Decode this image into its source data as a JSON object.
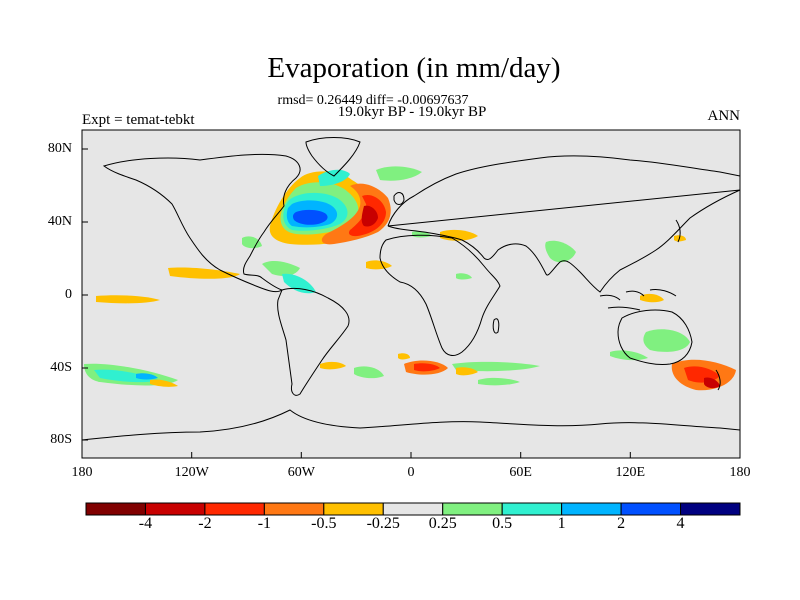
{
  "title": "Evaporation (in mm/day)",
  "stats": "rmsd= 0.26449 diff= -0.00697637",
  "period": "19.0kyr BP - 19.0kyr BP",
  "experiment": "Expt = temat-tebkt",
  "season": "ANN",
  "x_ticks": [
    "180",
    "120W",
    "60W",
    "0",
    "60E",
    "120E",
    "180"
  ],
  "y_ticks": [
    "80N",
    "40N",
    "0",
    "40S",
    "80S"
  ],
  "colorbar": {
    "labels": [
      "-4",
      "-2",
      "-1",
      "-0.5",
      "-0.25",
      "0.25",
      "0.5",
      "1",
      "2",
      "4"
    ],
    "colors": [
      "#800000",
      "#c80000",
      "#ff2800",
      "#ff7814",
      "#ffc000",
      "#e6e6e6",
      "#80f080",
      "#30f0d0",
      "#00b4ff",
      "#0050ff",
      "#000080"
    ]
  },
  "colors": {
    "land_ocean_background": "#e6e6e6",
    "coastline": "#000000"
  }
}
